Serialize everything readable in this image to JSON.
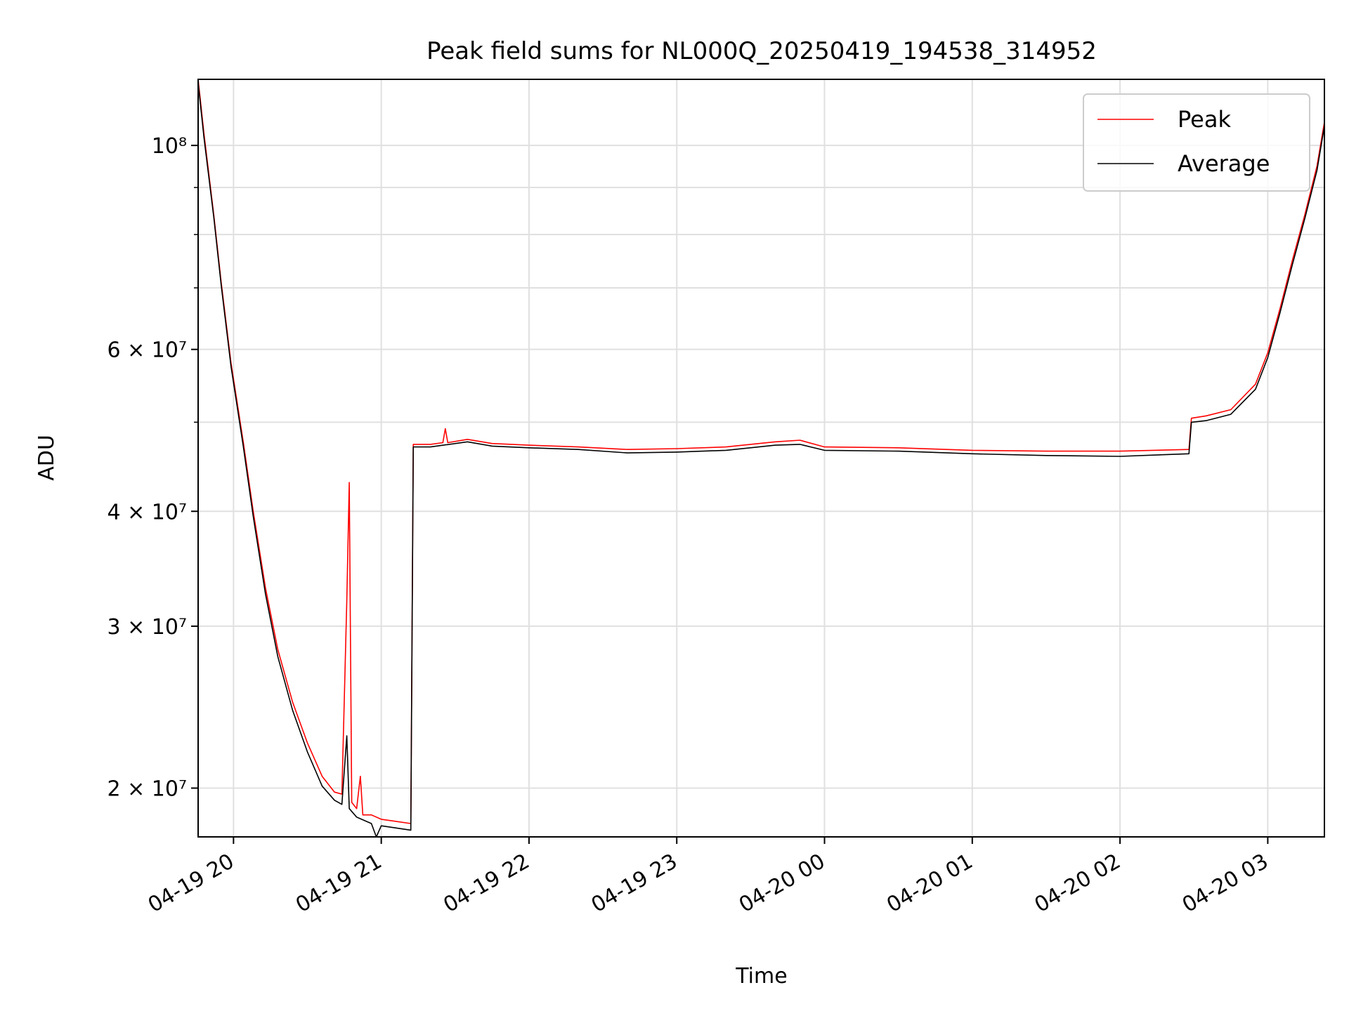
{
  "chart_data": {
    "type": "line",
    "title": "Peak field sums for NL000Q_20250419_194538_314952",
    "xlabel": "Time",
    "ylabel": "ADU",
    "y_scale": "log",
    "xlim": [
      "2025-04-19 19:45:38",
      "2025-04-20 03:23:00"
    ],
    "ylim": [
      17700000,
      118000000
    ],
    "grid": true,
    "legend_position": "top-right",
    "x_ticks": [
      {
        "t": "2025-04-19 20:00",
        "label": "04-19 20"
      },
      {
        "t": "2025-04-19 21:00",
        "label": "04-19 21"
      },
      {
        "t": "2025-04-19 22:00",
        "label": "04-19 22"
      },
      {
        "t": "2025-04-19 23:00",
        "label": "04-19 23"
      },
      {
        "t": "2025-04-20 00:00",
        "label": "04-20 00"
      },
      {
        "t": "2025-04-20 01:00",
        "label": "04-20 01"
      },
      {
        "t": "2025-04-20 02:00",
        "label": "04-20 02"
      },
      {
        "t": "2025-04-20 03:00",
        "label": "04-20 03"
      }
    ],
    "y_ticks": [
      {
        "value": 20000000,
        "label": "2 × 10⁷"
      },
      {
        "value": 30000000,
        "label": "3 × 10⁷"
      },
      {
        "value": 40000000,
        "label": "4 × 10⁷"
      },
      {
        "value": 60000000,
        "label": "6 × 10⁷"
      },
      {
        "value": 100000000,
        "label": "10⁸"
      }
    ],
    "series": [
      {
        "name": "Peak",
        "color": "#ff0000",
        "points": [
          [
            "2025-04-19 19:45:38",
            118000000
          ],
          [
            "2025-04-19 19:48:00",
            103000000
          ],
          [
            "2025-04-19 19:52:00",
            84000000
          ],
          [
            "2025-04-19 19:55:00",
            71000000
          ],
          [
            "2025-04-19 19:59:00",
            58000000
          ],
          [
            "2025-04-19 20:04:00",
            47500000
          ],
          [
            "2025-04-19 20:08:00",
            40000000
          ],
          [
            "2025-04-19 20:13:00",
            33000000
          ],
          [
            "2025-04-19 20:18:00",
            28300000
          ],
          [
            "2025-04-19 20:24:00",
            24800000
          ],
          [
            "2025-04-19 20:30:00",
            22400000
          ],
          [
            "2025-04-19 20:36:00",
            20600000
          ],
          [
            "2025-04-19 20:41:00",
            19800000
          ],
          [
            "2025-04-19 20:44:00",
            19700000
          ],
          [
            "2025-04-19 20:46:00",
            32000000
          ],
          [
            "2025-04-19 20:47:00",
            43000000
          ],
          [
            "2025-04-19 20:48:00",
            19300000
          ],
          [
            "2025-04-19 20:50:00",
            19000000
          ],
          [
            "2025-04-19 20:51:30",
            20600000
          ],
          [
            "2025-04-19 20:52:30",
            18700000
          ],
          [
            "2025-04-19 20:56:00",
            18700000
          ],
          [
            "2025-04-19 21:00:00",
            18500000
          ],
          [
            "2025-04-19 21:06:00",
            18400000
          ],
          [
            "2025-04-19 21:12:00",
            18300000
          ],
          [
            "2025-04-19 21:13:00",
            47300000
          ],
          [
            "2025-04-19 21:20:00",
            47300000
          ],
          [
            "2025-04-19 21:25:00",
            47500000
          ],
          [
            "2025-04-19 21:26:00",
            49200000
          ],
          [
            "2025-04-19 21:27:00",
            47500000
          ],
          [
            "2025-04-19 21:35:00",
            47900000
          ],
          [
            "2025-04-19 21:45:00",
            47400000
          ],
          [
            "2025-04-19 22:00:00",
            47200000
          ],
          [
            "2025-04-19 22:20:00",
            47000000
          ],
          [
            "2025-04-19 22:40:00",
            46700000
          ],
          [
            "2025-04-19 23:00:00",
            46800000
          ],
          [
            "2025-04-19 23:20:00",
            47000000
          ],
          [
            "2025-04-19 23:40:00",
            47600000
          ],
          [
            "2025-04-19 23:50:00",
            47800000
          ],
          [
            "2025-04-20 00:00:00",
            47000000
          ],
          [
            "2025-04-20 00:30:00",
            46900000
          ],
          [
            "2025-04-20 01:00:00",
            46600000
          ],
          [
            "2025-04-20 01:30:00",
            46500000
          ],
          [
            "2025-04-20 02:00:00",
            46500000
          ],
          [
            "2025-04-20 02:28:00",
            46700000
          ],
          [
            "2025-04-20 02:29:00",
            50500000
          ],
          [
            "2025-04-20 02:35:00",
            50800000
          ],
          [
            "2025-04-20 02:45:00",
            51600000
          ],
          [
            "2025-04-20 02:55:00",
            55000000
          ],
          [
            "2025-04-20 03:00:00",
            59500000
          ],
          [
            "2025-04-20 03:05:00",
            66500000
          ],
          [
            "2025-04-20 03:10:00",
            75000000
          ],
          [
            "2025-04-20 03:15:00",
            84000000
          ],
          [
            "2025-04-20 03:20:00",
            95000000
          ],
          [
            "2025-04-20 03:23:00",
            106000000
          ]
        ]
      },
      {
        "name": "Average",
        "color": "#000000",
        "points": [
          [
            "2025-04-19 19:45:38",
            117000000
          ],
          [
            "2025-04-19 19:48:00",
            102000000
          ],
          [
            "2025-04-19 19:52:00",
            83500000
          ],
          [
            "2025-04-19 19:55:00",
            70500000
          ],
          [
            "2025-04-19 19:59:00",
            57500000
          ],
          [
            "2025-04-19 20:04:00",
            47000000
          ],
          [
            "2025-04-19 20:08:00",
            39500000
          ],
          [
            "2025-04-19 20:13:00",
            32500000
          ],
          [
            "2025-04-19 20:18:00",
            27800000
          ],
          [
            "2025-04-19 20:24:00",
            24300000
          ],
          [
            "2025-04-19 20:30:00",
            21900000
          ],
          [
            "2025-04-19 20:36:00",
            20100000
          ],
          [
            "2025-04-19 20:41:00",
            19400000
          ],
          [
            "2025-04-19 20:44:00",
            19200000
          ],
          [
            "2025-04-19 20:46:00",
            22800000
          ],
          [
            "2025-04-19 20:47:00",
            19000000
          ],
          [
            "2025-04-19 20:50:00",
            18600000
          ],
          [
            "2025-04-19 20:56:00",
            18300000
          ],
          [
            "2025-04-19 20:58:00",
            17700000
          ],
          [
            "2025-04-19 21:00:00",
            18200000
          ],
          [
            "2025-04-19 21:06:00",
            18100000
          ],
          [
            "2025-04-19 21:12:00",
            18000000
          ],
          [
            "2025-04-19 21:13:00",
            47000000
          ],
          [
            "2025-04-19 21:20:00",
            47000000
          ],
          [
            "2025-04-19 21:35:00",
            47600000
          ],
          [
            "2025-04-19 21:45:00",
            47100000
          ],
          [
            "2025-04-19 22:00:00",
            46900000
          ],
          [
            "2025-04-19 22:20:00",
            46700000
          ],
          [
            "2025-04-19 22:40:00",
            46300000
          ],
          [
            "2025-04-19 23:00:00",
            46400000
          ],
          [
            "2025-04-19 23:20:00",
            46600000
          ],
          [
            "2025-04-19 23:40:00",
            47200000
          ],
          [
            "2025-04-19 23:50:00",
            47300000
          ],
          [
            "2025-04-20 00:00:00",
            46600000
          ],
          [
            "2025-04-20 00:30:00",
            46500000
          ],
          [
            "2025-04-20 01:00:00",
            46200000
          ],
          [
            "2025-04-20 01:30:00",
            46000000
          ],
          [
            "2025-04-20 02:00:00",
            45900000
          ],
          [
            "2025-04-20 02:28:00",
            46200000
          ],
          [
            "2025-04-20 02:29:00",
            50000000
          ],
          [
            "2025-04-20 02:35:00",
            50200000
          ],
          [
            "2025-04-20 02:45:00",
            51000000
          ],
          [
            "2025-04-20 02:55:00",
            54300000
          ],
          [
            "2025-04-20 03:00:00",
            58800000
          ],
          [
            "2025-04-20 03:05:00",
            65800000
          ],
          [
            "2025-04-20 03:10:00",
            74200000
          ],
          [
            "2025-04-20 03:15:00",
            83200000
          ],
          [
            "2025-04-20 03:20:00",
            94000000
          ],
          [
            "2025-04-20 03:23:00",
            105000000
          ]
        ]
      }
    ]
  }
}
